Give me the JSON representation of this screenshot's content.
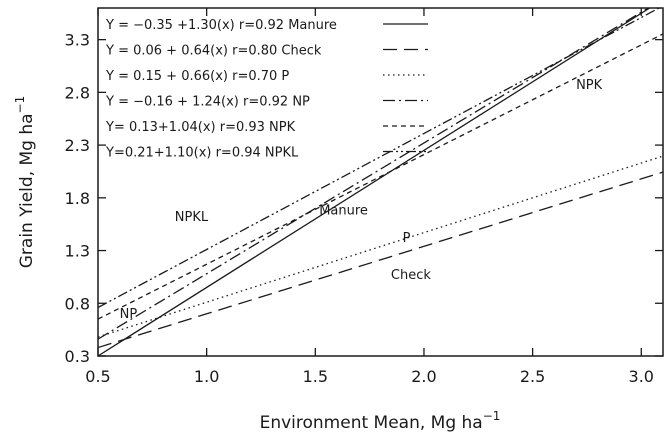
{
  "chart_data": {
    "type": "line",
    "xlabel": "Environment Mean, Mg ha",
    "xlabel_sup": "−1",
    "ylabel": "Grain Yield, Mg ha",
    "ylabel_sup": "−1",
    "xlim": [
      0.5,
      3.1
    ],
    "ylim": [
      0.3,
      3.6
    ],
    "x_ticks": [
      0.5,
      1.0,
      1.5,
      2.0,
      2.5,
      3.0
    ],
    "x_tick_labels": [
      "0.5",
      "1.0",
      "1.5",
      "2.0",
      "2.5",
      "3.0"
    ],
    "y_ticks": [
      0.3,
      0.8,
      1.3,
      1.8,
      2.3,
      2.8,
      3.3
    ],
    "y_tick_labels": [
      "0.3",
      "0.8",
      "1.3",
      "1.8",
      "2.3",
      "2.8",
      "3.3"
    ],
    "grid": false,
    "legend_position": "top-left",
    "series": [
      {
        "name": "Manure",
        "legend_label": "Y = −0.35 +1.30(x)  r=0.92  Manure",
        "intercept": -0.35,
        "slope": 1.3,
        "r": 0.92,
        "style": "solid"
      },
      {
        "name": "Check",
        "legend_label": "Y = 0.06 + 0.64(x)  r=0.80   Check",
        "intercept": 0.06,
        "slope": 0.64,
        "r": 0.8,
        "style": "longdash"
      },
      {
        "name": "P",
        "legend_label": "Y = 0.15 + 0.66(x)  r=0.70  P",
        "intercept": 0.15,
        "slope": 0.66,
        "r": 0.7,
        "style": "dotted"
      },
      {
        "name": "NP",
        "legend_label": "Y = −0.16 + 1.24(x)  r=0.92  NP",
        "intercept": -0.16,
        "slope": 1.24,
        "r": 0.92,
        "style": "dashdot"
      },
      {
        "name": "NPK",
        "legend_label": "Y= 0.13+1.04(x)  r=0.93   NPK",
        "intercept": 0.13,
        "slope": 1.04,
        "r": 0.93,
        "style": "shortdash"
      },
      {
        "name": "NPKL",
        "legend_label": "Y=0.21+1.10(x)  r=0.94   NPKL",
        "intercept": 0.21,
        "slope": 1.1,
        "r": 0.94,
        "style": "dashdotdot"
      }
    ],
    "annotations": [
      {
        "text": "NPK",
        "x": 2.76,
        "y": 2.83
      },
      {
        "text": "NPKL",
        "x": 0.93,
        "y": 1.58
      },
      {
        "text": "Manure",
        "x": 1.63,
        "y": 1.64
      },
      {
        "text": "P",
        "x": 1.92,
        "y": 1.38
      },
      {
        "text": "Check",
        "x": 1.94,
        "y": 1.03
      },
      {
        "text": "NP",
        "x": 0.64,
        "y": 0.66
      }
    ]
  }
}
